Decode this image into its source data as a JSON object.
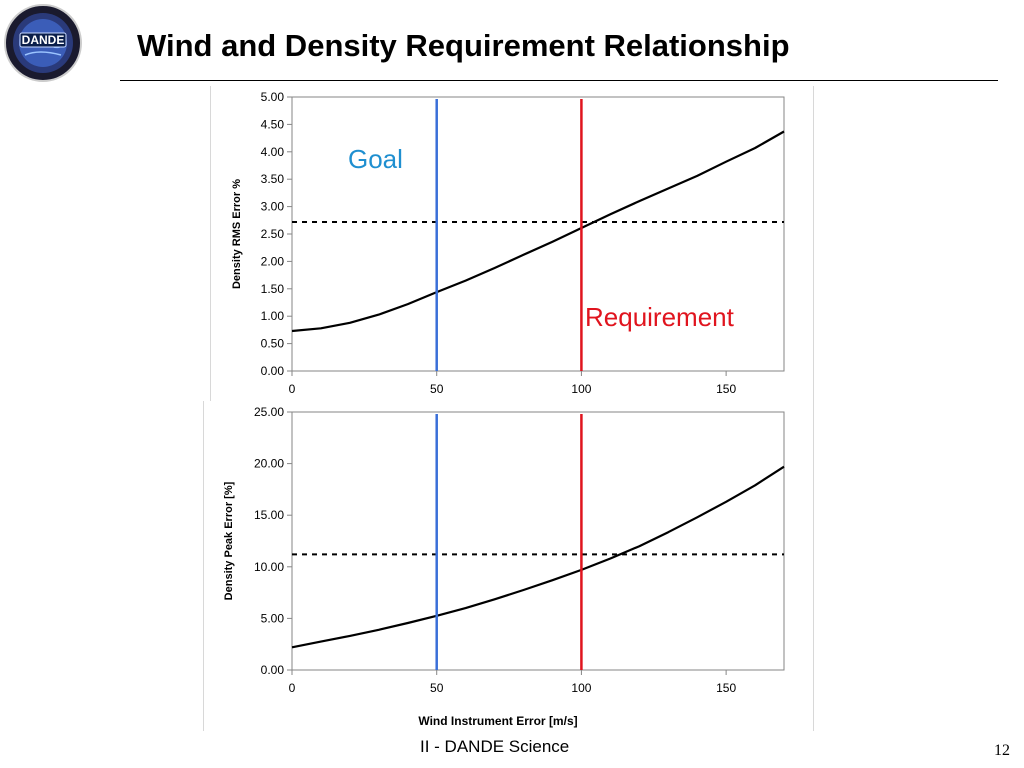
{
  "slide": {
    "title": "Wind and Density Requirement Relationship",
    "footer": "II - DANDE Science",
    "page_number": "12",
    "logo_text": "DANDE"
  },
  "colors": {
    "goal": "#3a6fd8",
    "requirement": "#e0141e",
    "goal_label": "#1f8fd0",
    "curve": "#000000",
    "threshold": "#000000",
    "axis": "#868686"
  },
  "chart_data": [
    {
      "type": "line",
      "title": "",
      "xlabel": "",
      "ylabel": "Density RMS Error %",
      "xlim": [
        0,
        170
      ],
      "ylim": [
        0,
        5
      ],
      "x_ticks": [
        "0",
        "50",
        "100",
        "150"
      ],
      "x_tick_values": [
        0,
        50,
        100,
        150
      ],
      "y_ticks": [
        "0.00",
        "0.50",
        "1.00",
        "1.50",
        "2.00",
        "2.50",
        "3.00",
        "3.50",
        "4.00",
        "4.50",
        "5.00"
      ],
      "y_tick_values": [
        0,
        0.5,
        1,
        1.5,
        2,
        2.5,
        3,
        3.5,
        4,
        4.5,
        5
      ],
      "series": [
        {
          "x": [
            0,
            10,
            20,
            30,
            40,
            50,
            60,
            70,
            80,
            90,
            100,
            110,
            120,
            130,
            140,
            150,
            160,
            170
          ],
          "y": [
            0.73,
            0.78,
            0.88,
            1.03,
            1.22,
            1.44,
            1.65,
            1.88,
            2.12,
            2.36,
            2.61,
            2.86,
            3.1,
            3.33,
            3.56,
            3.82,
            4.07,
            4.37
          ]
        }
      ],
      "threshold": 2.72,
      "vlines": [
        {
          "x": 50,
          "label": "Goal"
        },
        {
          "x": 100,
          "label": "Requirement"
        }
      ],
      "annotations": [
        "Goal",
        "Requirement"
      ],
      "grid": false
    },
    {
      "type": "line",
      "title": "",
      "xlabel": "Wind Instrument Error [m/s]",
      "ylabel": "Density Peak Error [%]",
      "xlim": [
        0,
        170
      ],
      "ylim": [
        0,
        25
      ],
      "x_ticks": [
        "0",
        "50",
        "100",
        "150"
      ],
      "x_tick_values": [
        0,
        50,
        100,
        150
      ],
      "y_ticks": [
        "0.00",
        "5.00",
        "10.00",
        "15.00",
        "20.00",
        "25.00"
      ],
      "y_tick_values": [
        0,
        5,
        10,
        15,
        20,
        25
      ],
      "series": [
        {
          "x": [
            0,
            10,
            20,
            30,
            40,
            50,
            60,
            70,
            80,
            90,
            100,
            110,
            120,
            130,
            140,
            150,
            160,
            170
          ],
          "y": [
            2.2,
            2.75,
            3.3,
            3.9,
            4.55,
            5.25,
            6.0,
            6.85,
            7.75,
            8.7,
            9.7,
            10.8,
            12.0,
            13.35,
            14.8,
            16.3,
            17.9,
            19.7
          ]
        }
      ],
      "threshold": 11.2,
      "vlines": [
        {
          "x": 50
        },
        {
          "x": 100
        }
      ],
      "grid": false
    }
  ]
}
